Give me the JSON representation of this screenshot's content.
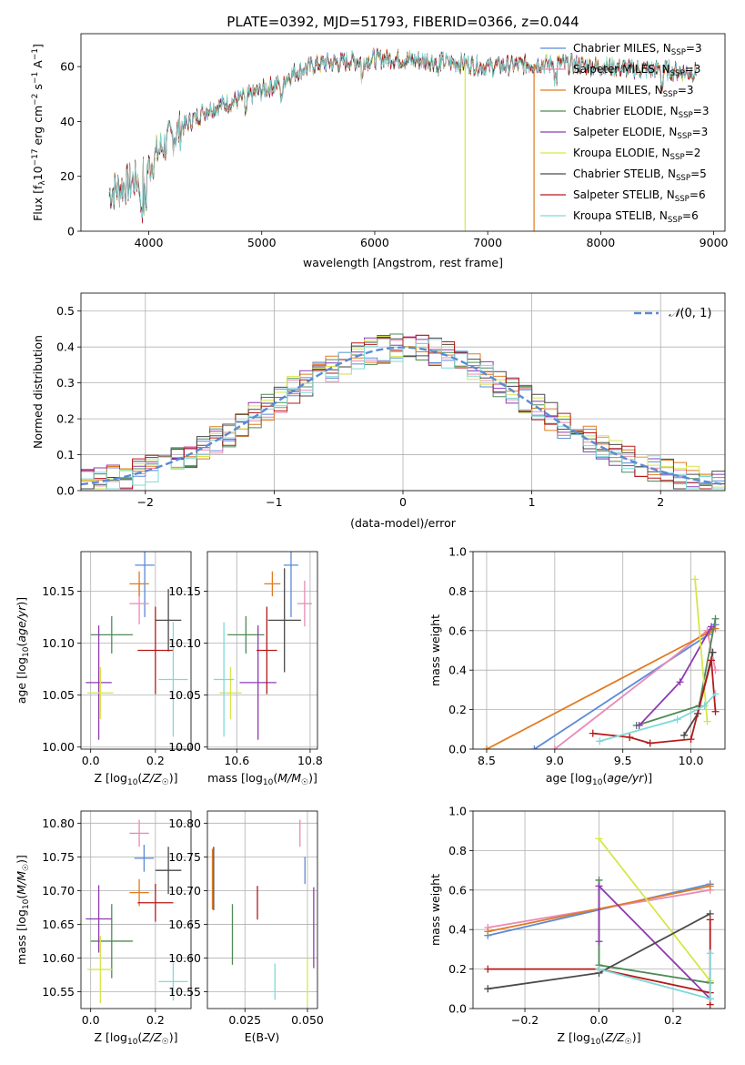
{
  "title": "PLATE=0392, MJD=51793, FIBERID=0366, z=0.044",
  "colors": {
    "Chabrier MILES": "#5b8ad6",
    "Salpeter MILES": "#e98ab7",
    "Kroupa MILES": "#e07b20",
    "Chabrier ELODIE": "#4e8a55",
    "Salpeter ELODIE": "#8e3bb0",
    "Kroupa ELODIE": "#d7e64a",
    "Chabrier STELIB": "#4a4a4a",
    "Salpeter STELIB": "#b51a1a",
    "Kroupa STELIB": "#7fd9d9",
    "normal": "#5b8ad6"
  },
  "legend_spectrum": [
    {
      "name": "Chabrier MILES",
      "nssp": "3"
    },
    {
      "name": "Salpeter MILES",
      "nssp": "3"
    },
    {
      "name": "Kroupa MILES",
      "nssp": "3"
    },
    {
      "name": "Chabrier ELODIE",
      "nssp": "3"
    },
    {
      "name": "Salpeter ELODIE",
      "nssp": "3"
    },
    {
      "name": "Kroupa ELODIE",
      "nssp": "2"
    },
    {
      "name": "Chabrier STELIB",
      "nssp": "5"
    },
    {
      "name": "Salpeter STELIB",
      "nssp": "6"
    },
    {
      "name": "Kroupa STELIB",
      "nssp": "6"
    }
  ],
  "chart_data": [
    {
      "id": "spectrum",
      "type": "line",
      "xlabel": "wavelength [Angstrom, rest frame]",
      "ylabel": "Flux [f_λ 10^-17 erg cm^-2 s^-1 A^-1]",
      "xlim": [
        3400,
        9100
      ],
      "ylim": [
        0,
        72
      ],
      "xticks": [
        4000,
        5000,
        6000,
        7000,
        8000,
        9000
      ],
      "yticks": [
        0,
        20,
        40,
        60
      ],
      "continuum": [
        [
          3650,
          14
        ],
        [
          3800,
          17
        ],
        [
          3950,
          20
        ],
        [
          4100,
          30
        ],
        [
          4300,
          38
        ],
        [
          4500,
          44
        ],
        [
          4800,
          48
        ],
        [
          5100,
          53
        ],
        [
          5300,
          58
        ],
        [
          5500,
          61
        ],
        [
          5800,
          62
        ],
        [
          6100,
          63
        ],
        [
          6500,
          62
        ],
        [
          6800,
          61
        ],
        [
          7000,
          60
        ],
        [
          7400,
          61
        ],
        [
          7700,
          61
        ],
        [
          8000,
          60
        ],
        [
          8400,
          59
        ],
        [
          8800,
          58
        ]
      ],
      "spikes": [
        {
          "x": 6800,
          "series": "Kroupa ELODIE"
        },
        {
          "x": 7410,
          "series": "Kroupa MILES"
        }
      ]
    },
    {
      "id": "residuals",
      "type": "histogram",
      "xlabel": "(data-model)/error",
      "ylabel": "Normed distribution",
      "xlim": [
        -2.5,
        2.5
      ],
      "ylim": [
        0,
        0.55
      ],
      "xticks": [
        -2,
        -1,
        0,
        1,
        2
      ],
      "yticks": [
        0,
        0.1,
        0.2,
        0.3,
        0.4,
        0.5
      ],
      "bin_width": 0.1,
      "reference_curve": "N(0,1)",
      "legend": "𝒩(0, 1)"
    },
    {
      "id": "age_vs_Z",
      "type": "errorbar",
      "xlabel": "Z [log10(Z/Z☉)]",
      "ylabel": "age  [log10(age/yr)]",
      "xlim": [
        -0.03,
        0.31
      ],
      "ylim": [
        9.998,
        10.188
      ],
      "xticks": [
        0.0,
        0.2
      ],
      "yticks": [
        10.0,
        10.05,
        10.1,
        10.15
      ],
      "points": [
        {
          "series": "Chabrier MILES",
          "x": 0.167,
          "xerr": 0.03,
          "y": 10.175,
          "yerr": 0.05
        },
        {
          "series": "Salpeter MILES",
          "x": 0.15,
          "xerr": 0.03,
          "y": 10.138,
          "yerr": 0.02
        },
        {
          "series": "Kroupa MILES",
          "x": 0.15,
          "xerr": 0.03,
          "y": 10.157,
          "yerr": 0.012
        },
        {
          "series": "Chabrier ELODIE",
          "x": 0.065,
          "xerr": 0.065,
          "y": 10.108,
          "yerr": 0.018
        },
        {
          "series": "Salpeter ELODIE",
          "x": 0.025,
          "xerr": 0.04,
          "y": 10.062,
          "yerr": 0.055
        },
        {
          "series": "Kroupa ELODIE",
          "x": 0.03,
          "xerr": 0.04,
          "y": 10.052,
          "yerr": 0.025
        },
        {
          "series": "Chabrier STELIB",
          "x": 0.24,
          "xerr": 0.04,
          "y": 10.122,
          "yerr": 0.03
        },
        {
          "series": "Salpeter STELIB",
          "x": 0.2,
          "xerr": 0.055,
          "y": 10.093,
          "yerr": 0.042
        },
        {
          "series": "Kroupa STELIB",
          "x": 0.255,
          "xerr": 0.045,
          "y": 10.065,
          "yerr": 0.055
        }
      ]
    },
    {
      "id": "age_vs_mass",
      "type": "errorbar",
      "xlabel": "mass [log10(M/M☉)]",
      "ylabel": "",
      "xlim": [
        10.52,
        10.82
      ],
      "ylim": [
        9.998,
        10.188
      ],
      "xticks": [
        10.6,
        10.8
      ],
      "yticks": [
        10.0,
        10.05,
        10.1,
        10.15
      ],
      "points": [
        {
          "series": "Chabrier MILES",
          "x": 10.748,
          "xerr": 0.02,
          "y": 10.175,
          "yerr": 0.05
        },
        {
          "series": "Salpeter MILES",
          "x": 10.785,
          "xerr": 0.02,
          "y": 10.138,
          "yerr": 0.022
        },
        {
          "series": "Kroupa MILES",
          "x": 10.697,
          "xerr": 0.022,
          "y": 10.157,
          "yerr": 0.012
        },
        {
          "series": "Chabrier ELODIE",
          "x": 10.625,
          "xerr": 0.05,
          "y": 10.108,
          "yerr": 0.018
        },
        {
          "series": "Salpeter ELODIE",
          "x": 10.658,
          "xerr": 0.05,
          "y": 10.062,
          "yerr": 0.055
        },
        {
          "series": "Kroupa ELODIE",
          "x": 10.583,
          "xerr": 0.03,
          "y": 10.052,
          "yerr": 0.025
        },
        {
          "series": "Chabrier STELIB",
          "x": 10.73,
          "xerr": 0.045,
          "y": 10.122,
          "yerr": 0.05
        },
        {
          "series": "Salpeter STELIB",
          "x": 10.682,
          "xerr": 0.028,
          "y": 10.093,
          "yerr": 0.042
        },
        {
          "series": "Kroupa STELIB",
          "x": 10.565,
          "xerr": 0.028,
          "y": 10.065,
          "yerr": 0.055
        }
      ]
    },
    {
      "id": "weight_vs_age",
      "type": "line",
      "xlabel": "age  [log10(age/yr)]",
      "ylabel": "mass weight",
      "xlim": [
        8.4,
        10.25
      ],
      "ylim": [
        0,
        1.0
      ],
      "xticks": [
        8.5,
        9.0,
        9.5,
        10.0
      ],
      "yticks": [
        0.0,
        0.2,
        0.4,
        0.6,
        0.8,
        1.0
      ],
      "series": [
        {
          "name": "Chabrier MILES",
          "points": [
            [
              8.85,
              0.0
            ],
            [
              10.13,
              0.58
            ],
            [
              10.18,
              0.63
            ]
          ]
        },
        {
          "name": "Salpeter MILES",
          "points": [
            [
              9.0,
              0.0
            ],
            [
              10.12,
              0.6
            ],
            [
              10.18,
              0.4
            ]
          ]
        },
        {
          "name": "Kroupa MILES",
          "points": [
            [
              8.5,
              0.0
            ],
            [
              10.13,
              0.59
            ],
            [
              10.18,
              0.61
            ]
          ]
        },
        {
          "name": "Chabrier ELODIE",
          "points": [
            [
              9.6,
              0.12
            ],
            [
              10.06,
              0.22
            ],
            [
              10.18,
              0.66
            ]
          ]
        },
        {
          "name": "Salpeter ELODIE",
          "points": [
            [
              9.62,
              0.12
            ],
            [
              9.92,
              0.34
            ],
            [
              10.15,
              0.62
            ]
          ]
        },
        {
          "name": "Kroupa ELODIE",
          "points": [
            [
              10.03,
              0.86
            ],
            [
              10.12,
              0.14
            ]
          ]
        },
        {
          "name": "Chabrier STELIB",
          "points": [
            [
              9.95,
              0.07
            ],
            [
              10.05,
              0.18
            ],
            [
              10.16,
              0.49
            ]
          ]
        },
        {
          "name": "Salpeter STELIB",
          "points": [
            [
              9.28,
              0.08
            ],
            [
              9.55,
              0.06
            ],
            [
              9.7,
              0.03
            ],
            [
              10.0,
              0.05
            ],
            [
              10.15,
              0.45
            ],
            [
              10.18,
              0.19
            ]
          ]
        },
        {
          "name": "Kroupa STELIB",
          "points": [
            [
              9.33,
              0.04
            ],
            [
              9.9,
              0.15
            ],
            [
              10.1,
              0.22
            ],
            [
              10.18,
              0.28
            ]
          ]
        }
      ]
    },
    {
      "id": "mass_vs_Z",
      "type": "errorbar",
      "xlabel": "Z [log10(Z/Z☉)]",
      "ylabel": "mass [log10(M/M☉)]",
      "xlim": [
        -0.03,
        0.31
      ],
      "ylim": [
        10.525,
        10.818
      ],
      "xticks": [
        0.0,
        0.2
      ],
      "yticks": [
        10.55,
        10.6,
        10.65,
        10.7,
        10.75,
        10.8
      ],
      "points": [
        {
          "series": "Chabrier MILES",
          "x": 0.165,
          "xerr": 0.03,
          "y": 10.748,
          "yerr": 0.02
        },
        {
          "series": "Salpeter MILES",
          "x": 0.15,
          "xerr": 0.03,
          "y": 10.785,
          "yerr": 0.02
        },
        {
          "series": "Kroupa MILES",
          "x": 0.15,
          "xerr": 0.03,
          "y": 10.697,
          "yerr": 0.02
        },
        {
          "series": "Chabrier ELODIE",
          "x": 0.065,
          "xerr": 0.065,
          "y": 10.625,
          "yerr": 0.055
        },
        {
          "series": "Salpeter ELODIE",
          "x": 0.025,
          "xerr": 0.04,
          "y": 10.658,
          "yerr": 0.05
        },
        {
          "series": "Kroupa ELODIE",
          "x": 0.03,
          "xerr": 0.04,
          "y": 10.583,
          "yerr": 0.05
        },
        {
          "series": "Chabrier STELIB",
          "x": 0.24,
          "xerr": 0.04,
          "y": 10.73,
          "yerr": 0.035
        },
        {
          "series": "Salpeter STELIB",
          "x": 0.2,
          "xerr": 0.055,
          "y": 10.682,
          "yerr": 0.028
        },
        {
          "series": "Kroupa STELIB",
          "x": 0.255,
          "xerr": 0.045,
          "y": 10.565,
          "yerr": 0.028
        }
      ]
    },
    {
      "id": "mass_vs_ebv",
      "type": "errorbar",
      "xlabel": "E(B-V)",
      "ylabel": "",
      "xlim": [
        0.01,
        0.054
      ],
      "ylim": [
        10.525,
        10.818
      ],
      "xticks": [
        0.025,
        0.05
      ],
      "yticks": [
        10.55,
        10.6,
        10.65,
        10.7,
        10.75,
        10.8
      ],
      "points": [
        {
          "series": "Chabrier MILES",
          "x": 0.049,
          "y": 10.73,
          "yerr": 0.02
        },
        {
          "series": "Salpeter MILES",
          "x": 0.047,
          "y": 10.785,
          "yerr": 0.02
        },
        {
          "series": "Kroupa MILES",
          "x": 0.012,
          "y": 10.717,
          "yerr": 0.045
        },
        {
          "series": "Chabrier ELODIE",
          "x": 0.02,
          "y": 10.635,
          "yerr": 0.045
        },
        {
          "series": "Salpeter ELODIE",
          "x": 0.0525,
          "y": 10.645,
          "yerr": 0.06
        },
        {
          "series": "Kroupa ELODIE",
          "x": 0.05,
          "y": 10.565,
          "yerr": 0.035
        },
        {
          "series": "Chabrier STELIB",
          "x": 0.0125,
          "y": 10.718,
          "yerr": 0.047
        },
        {
          "series": "Salpeter STELIB",
          "x": 0.03,
          "y": 10.682,
          "yerr": 0.025
        },
        {
          "series": "Kroupa STELIB",
          "x": 0.037,
          "y": 10.565,
          "yerr": 0.027
        }
      ]
    },
    {
      "id": "weight_vs_Z",
      "type": "line",
      "xlabel": "Z [log10(Z/Z☉)]",
      "ylabel": "mass weight",
      "xlim": [
        -0.34,
        0.34
      ],
      "ylim": [
        0,
        1.0
      ],
      "xticks": [
        -0.2,
        0.0,
        0.2
      ],
      "yticks": [
        0.0,
        0.2,
        0.4,
        0.6,
        0.8,
        1.0
      ],
      "series": [
        {
          "name": "Chabrier MILES",
          "points": [
            [
              -0.3,
              0.37
            ],
            [
              0.3,
              0.63
            ]
          ]
        },
        {
          "name": "Salpeter MILES",
          "points": [
            [
              -0.3,
              0.41
            ],
            [
              0.3,
              0.6
            ]
          ]
        },
        {
          "name": "Kroupa MILES",
          "points": [
            [
              -0.3,
              0.39
            ],
            [
              0.3,
              0.62
            ]
          ]
        },
        {
          "name": "Chabrier ELODIE",
          "points": [
            [
              0.0,
              0.65
            ],
            [
              0.0,
              0.22
            ],
            [
              0.3,
              0.13
            ]
          ]
        },
        {
          "name": "Salpeter ELODIE",
          "points": [
            [
              0.0,
              0.34
            ],
            [
              0.0,
              0.62
            ],
            [
              0.3,
              0.05
            ]
          ]
        },
        {
          "name": "Kroupa ELODIE",
          "points": [
            [
              0.0,
              0.86
            ],
            [
              0.3,
              0.14
            ]
          ]
        },
        {
          "name": "Chabrier STELIB",
          "points": [
            [
              -0.3,
              0.1
            ],
            [
              0.0,
              0.18
            ],
            [
              0.3,
              0.48
            ]
          ]
        },
        {
          "name": "Salpeter STELIB",
          "points": [
            [
              -0.3,
              0.2
            ],
            [
              0.0,
              0.2
            ],
            [
              0.3,
              0.08
            ],
            [
              0.3,
              0.45
            ],
            [
              0.3,
              0.02
            ]
          ]
        },
        {
          "name": "Kroupa STELIB",
          "points": [
            [
              0.0,
              0.2
            ],
            [
              0.3,
              0.05
            ],
            [
              0.3,
              0.28
            ]
          ]
        }
      ]
    }
  ]
}
